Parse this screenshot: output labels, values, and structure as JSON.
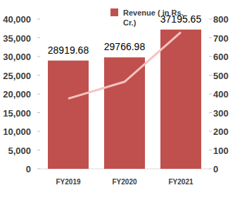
{
  "chart_data": {
    "type": "bar",
    "categories": [
      "FY2019",
      "FY2020",
      "FY2021"
    ],
    "series": [
      {
        "name": "Revenue ( in Rs. Cr.)",
        "type": "bar",
        "color": "#c0504d",
        "data_labels": true,
        "values": [
          28919.68,
          29766.98,
          37195.65
        ]
      },
      {
        "type": "line",
        "axis": "y2",
        "color": "#f4c4c0",
        "values": [
          375,
          465,
          730
        ]
      }
    ],
    "ylim": [
      0,
      40000
    ],
    "yticks": [
      0,
      {
        "value": 5000,
        "label": "5,000"
      },
      {
        "value": 10000,
        "label": "10,000"
      },
      {
        "value": 15000,
        "label": "15,000"
      },
      {
        "value": 20000,
        "label": "20,000"
      },
      {
        "value": 25000,
        "label": "25,000"
      },
      {
        "value": 30000,
        "label": "30,000"
      },
      {
        "value": 35000,
        "label": "35,000"
      },
      {
        "value": 40000,
        "label": "40,000"
      }
    ],
    "y2lim": [
      0,
      800
    ],
    "y2ticks": [
      0,
      100,
      200,
      300,
      400,
      500,
      600,
      700,
      800
    ],
    "legend": "top"
  }
}
